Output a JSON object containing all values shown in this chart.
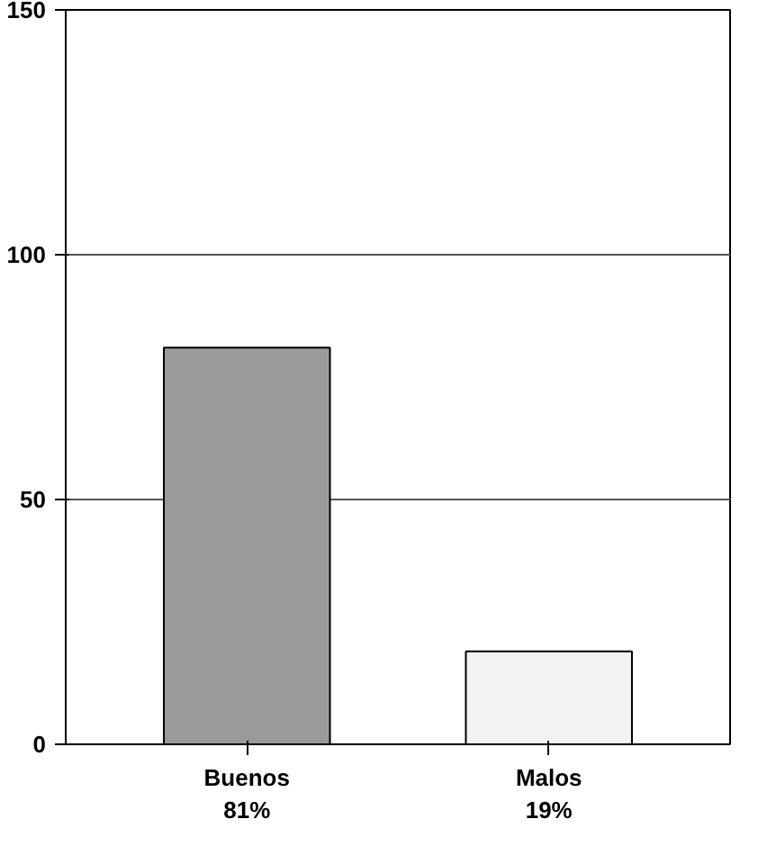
{
  "chart_data": {
    "type": "bar",
    "categories": [
      "Buenos",
      "Malos"
    ],
    "values": [
      81,
      19
    ],
    "value_labels": [
      "81%",
      "19%"
    ],
    "colors": [
      "#9a9a9a",
      "#f2f2f2"
    ],
    "ylim": [
      0,
      150
    ],
    "yticks": [
      0,
      50,
      100,
      150
    ],
    "grid": "y"
  }
}
